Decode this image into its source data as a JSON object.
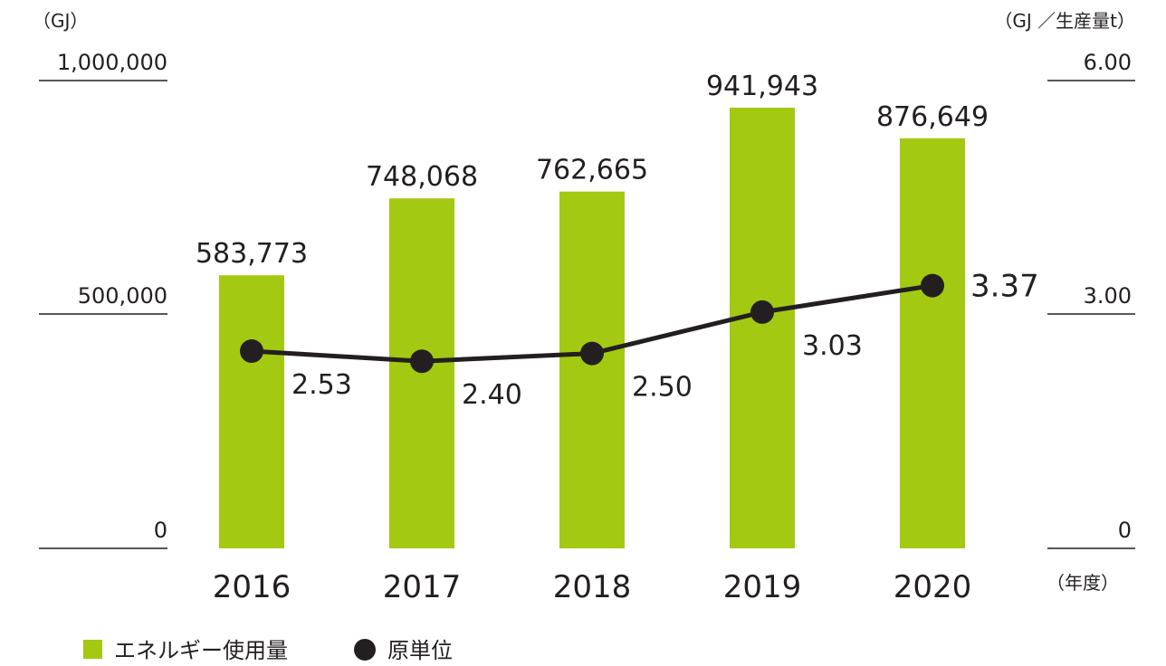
{
  "chart_data": {
    "type": "bar",
    "categories": [
      "2016",
      "2017",
      "2018",
      "2019",
      "2020"
    ],
    "series": [
      {
        "name": "エネルギー使用量",
        "kind": "bar",
        "axis": "left",
        "values": [
          583773,
          748068,
          762665,
          941943,
          876649
        ],
        "labels": [
          "583,773",
          "748,068",
          "762,665",
          "941,943",
          "876,649"
        ]
      },
      {
        "name": "原単位",
        "kind": "line",
        "axis": "right",
        "values": [
          2.53,
          2.4,
          2.5,
          3.03,
          3.37
        ],
        "labels": [
          "2.53",
          "2.40",
          "2.50",
          "3.03",
          "3.37"
        ]
      }
    ],
    "y_left": {
      "unit": "（GJ）",
      "ticks": [
        "0",
        "500,000",
        "1,000,000"
      ],
      "range": [
        0,
        1000000
      ]
    },
    "y_right": {
      "unit": "（GJ ／生産量t）",
      "ticks": [
        "0",
        "3.00",
        "6.00"
      ],
      "range": [
        0,
        6
      ]
    },
    "x_unit": "（年度）",
    "legend_position": "bottom-left",
    "grid": false,
    "colors": {
      "bar": "#a4c912",
      "line": "#231f20",
      "text": "#231f20"
    }
  }
}
